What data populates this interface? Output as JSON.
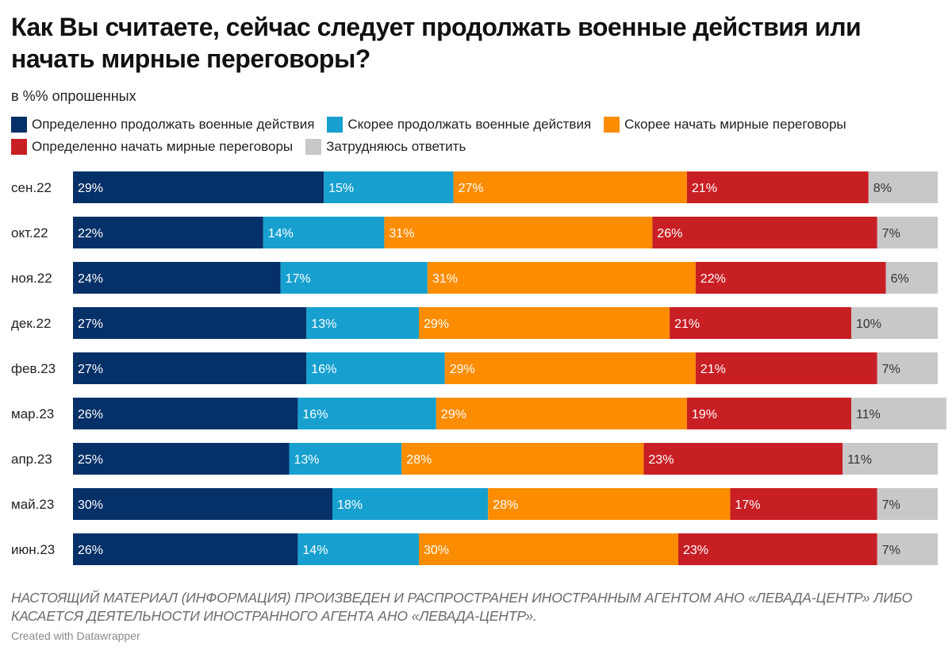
{
  "chart_data": {
    "type": "bar",
    "orientation": "horizontal",
    "stacked": true,
    "title": "Как Вы считаете, сейчас следует продолжать военные действия или начать мирные переговоры?",
    "subtitle": "в %% опрошенных",
    "categories": [
      "сен.22",
      "окт.22",
      "ноя.22",
      "дек.22",
      "фев.23",
      "мар.23",
      "апр.23",
      "май.23",
      "июн.23"
    ],
    "series": [
      {
        "name": "Определенно продолжать военные действия",
        "color": "#063068",
        "label_color": "#ffffff",
        "values": [
          29,
          22,
          24,
          27,
          27,
          26,
          25,
          30,
          26
        ]
      },
      {
        "name": "Скорее продолжать военные действия",
        "color": "#17a0cf",
        "label_color": "#ffffff",
        "values": [
          15,
          14,
          17,
          13,
          16,
          16,
          13,
          18,
          14
        ]
      },
      {
        "name": "Скорее начать мирные переговоры",
        "color": "#fc8c00",
        "label_color": "#ffffff",
        "values": [
          27,
          31,
          31,
          29,
          29,
          29,
          28,
          28,
          30
        ]
      },
      {
        "name": "Определенно начать мирные переговоры",
        "color": "#c81f24",
        "label_color": "#ffffff",
        "values": [
          21,
          26,
          22,
          21,
          21,
          19,
          23,
          17,
          23
        ]
      },
      {
        "name": "Затрудняюсь ответить",
        "color": "#c8c8c8",
        "label_color": "#333333",
        "values": [
          8,
          7,
          6,
          10,
          7,
          11,
          11,
          7,
          7
        ]
      }
    ],
    "value_suffix": "%",
    "xlim": [
      0,
      100
    ],
    "grid": false,
    "legend_position": "top"
  },
  "footer": {
    "note": "НАСТОЯЩИЙ МАТЕРИАЛ (ИНФОРМАЦИЯ) ПРОИЗВЕДЕН И РАСПРОСТРАНЕН ИНОСТРАННЫМ АГЕНТОМ АНО «ЛЕВАДА-ЦЕНТР» ЛИБО КАСАЕТСЯ ДЕЯТЕЛЬНОСТИ ИНОСТРАННОГО АГЕНТА АНО «ЛЕВАДА-ЦЕНТР».",
    "credit": "Created with Datawrapper"
  }
}
